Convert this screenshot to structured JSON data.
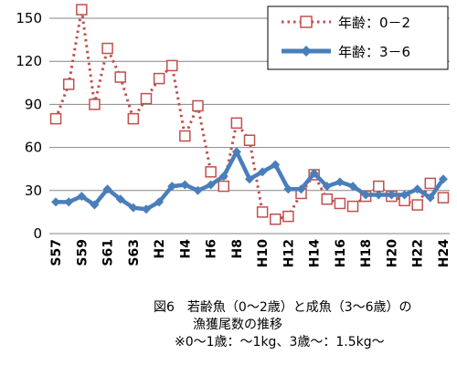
{
  "chart_data": {
    "type": "line",
    "title": "",
    "xlabel": "",
    "ylabel": "",
    "ylim": [
      0,
      150
    ],
    "yticks": [
      0,
      30,
      60,
      90,
      120,
      150
    ],
    "grid": "horizontal",
    "legend_position": "top-right",
    "categories": [
      "S57",
      "S58",
      "S59",
      "S60",
      "S61",
      "S62",
      "S63",
      "H1",
      "H2",
      "H3",
      "H4",
      "H5",
      "H6",
      "H7",
      "H8",
      "H9",
      "H10",
      "H11",
      "H12",
      "H13",
      "H14",
      "H15",
      "H16",
      "H17",
      "H18",
      "H19",
      "H20",
      "H21",
      "H22",
      "H23",
      "H24"
    ],
    "tick_labels": [
      "S57",
      "S59",
      "S61",
      "S63",
      "H2",
      "H4",
      "H6",
      "H8",
      "H10",
      "H12",
      "H14",
      "H16",
      "H18",
      "H20",
      "H22",
      "H24"
    ],
    "series": [
      {
        "name": "年齢：0－2",
        "color": "#c0504d",
        "style": "dotted-square",
        "values": [
          80,
          104,
          156,
          90,
          129,
          109,
          80,
          94,
          108,
          117,
          68,
          89,
          43,
          33,
          77,
          65,
          15,
          10,
          12,
          28,
          41,
          24,
          21,
          19,
          26,
          33,
          26,
          23,
          20,
          35,
          25
        ]
      },
      {
        "name": "年齢：3－6",
        "color": "#4a7ebb",
        "style": "solid-diamond",
        "values": [
          22,
          22,
          26,
          20,
          31,
          24,
          18,
          17,
          22,
          33,
          34,
          30,
          34,
          40,
          57,
          38,
          43,
          48,
          31,
          31,
          42,
          33,
          36,
          33,
          27,
          27,
          27,
          27,
          31,
          25,
          38
        ]
      }
    ]
  },
  "caption": {
    "line1": "図6　若齢魚（0～2歳）と成魚（3～6歳）の",
    "line2": "漁獲尾数の推移",
    "line3": "※0～1歳：～1kg、3歳～：1.5kg～"
  }
}
